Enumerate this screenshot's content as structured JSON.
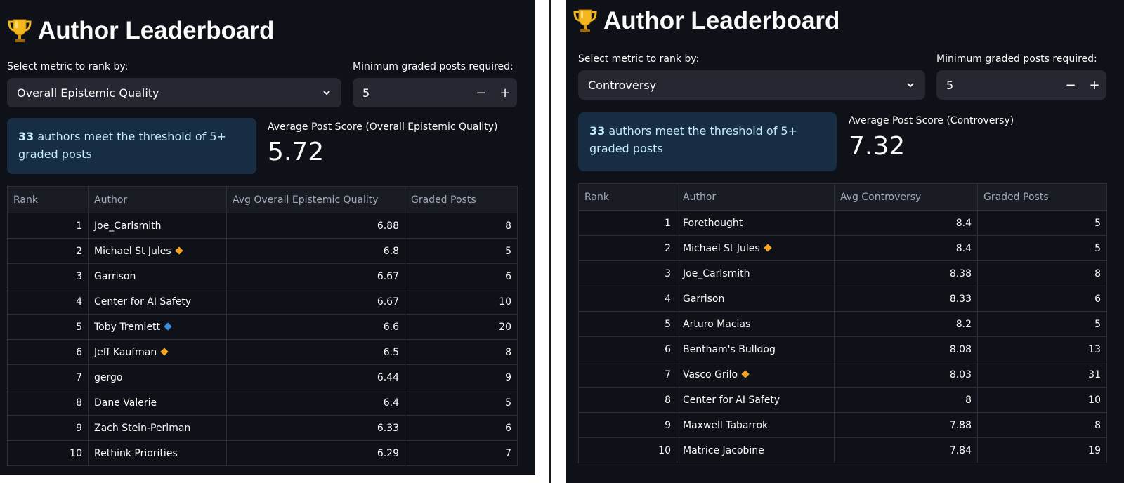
{
  "colors": {
    "background": "#0e1117",
    "widget": "#262730",
    "info_bg": "#172d43",
    "info_text": "#c7ebff",
    "diamond_orange": "#f5a524",
    "diamond_blue": "#3b8fe0"
  },
  "left": {
    "title": "Author Leaderboard",
    "title_icon": "trophy-icon",
    "metric_label": "Select metric to rank by:",
    "metric_value": "Overall Epistemic Quality",
    "min_posts_label": "Minimum graded posts required:",
    "min_posts_value": "5",
    "stepper_minus": "−",
    "stepper_plus": "+",
    "info_count": "33",
    "info_text": " authors meet the threshold of 5+ graded posts",
    "avg_label": "Average Post Score (Overall Epistemic Quality)",
    "avg_value": "5.72",
    "columns": [
      "Rank",
      "Author",
      "Avg Overall Epistemic Quality",
      "Graded Posts"
    ],
    "rows": [
      {
        "rank": "1",
        "author": "Joe_Carlsmith",
        "score": "6.88",
        "posts": "8",
        "badge": ""
      },
      {
        "rank": "2",
        "author": "Michael St Jules",
        "score": "6.8",
        "posts": "5",
        "badge": "orange"
      },
      {
        "rank": "3",
        "author": "Garrison",
        "score": "6.67",
        "posts": "6",
        "badge": ""
      },
      {
        "rank": "4",
        "author": "Center for AI Safety",
        "score": "6.67",
        "posts": "10",
        "badge": ""
      },
      {
        "rank": "5",
        "author": "Toby Tremlett",
        "score": "6.6",
        "posts": "20",
        "badge": "blue"
      },
      {
        "rank": "6",
        "author": "Jeff Kaufman",
        "score": "6.5",
        "posts": "8",
        "badge": "orange"
      },
      {
        "rank": "7",
        "author": "gergo",
        "score": "6.44",
        "posts": "9",
        "badge": ""
      },
      {
        "rank": "8",
        "author": "Dane Valerie",
        "score": "6.4",
        "posts": "5",
        "badge": ""
      },
      {
        "rank": "9",
        "author": "Zach Stein-Perlman",
        "score": "6.33",
        "posts": "6",
        "badge": ""
      },
      {
        "rank": "10",
        "author": "Rethink Priorities",
        "score": "6.29",
        "posts": "7",
        "badge": ""
      }
    ]
  },
  "right": {
    "title": "Author Leaderboard",
    "title_icon": "trophy-icon",
    "metric_label": "Select metric to rank by:",
    "metric_value": "Controversy",
    "min_posts_label": "Minimum graded posts required:",
    "min_posts_value": "5",
    "stepper_minus": "−",
    "stepper_plus": "+",
    "info_count": "33",
    "info_text": " authors meet the threshold of 5+ graded posts",
    "avg_label": "Average Post Score (Controversy)",
    "avg_value": "7.32",
    "columns": [
      "Rank",
      "Author",
      "Avg Controversy",
      "Graded Posts"
    ],
    "rows": [
      {
        "rank": "1",
        "author": "Forethought",
        "score": "8.4",
        "posts": "5",
        "badge": ""
      },
      {
        "rank": "2",
        "author": "Michael St Jules",
        "score": "8.4",
        "posts": "5",
        "badge": "orange"
      },
      {
        "rank": "3",
        "author": "Joe_Carlsmith",
        "score": "8.38",
        "posts": "8",
        "badge": ""
      },
      {
        "rank": "4",
        "author": "Garrison",
        "score": "8.33",
        "posts": "6",
        "badge": ""
      },
      {
        "rank": "5",
        "author": "Arturo Macias",
        "score": "8.2",
        "posts": "5",
        "badge": ""
      },
      {
        "rank": "6",
        "author": "Bentham's Bulldog",
        "score": "8.08",
        "posts": "13",
        "badge": ""
      },
      {
        "rank": "7",
        "author": "Vasco Grilo",
        "score": "8.03",
        "posts": "31",
        "badge": "orange"
      },
      {
        "rank": "8",
        "author": "Center for AI Safety",
        "score": "8",
        "posts": "10",
        "badge": ""
      },
      {
        "rank": "9",
        "author": "Maxwell Tabarrok",
        "score": "7.88",
        "posts": "8",
        "badge": ""
      },
      {
        "rank": "10",
        "author": "Matrice Jacobine",
        "score": "7.84",
        "posts": "19",
        "badge": ""
      }
    ]
  }
}
